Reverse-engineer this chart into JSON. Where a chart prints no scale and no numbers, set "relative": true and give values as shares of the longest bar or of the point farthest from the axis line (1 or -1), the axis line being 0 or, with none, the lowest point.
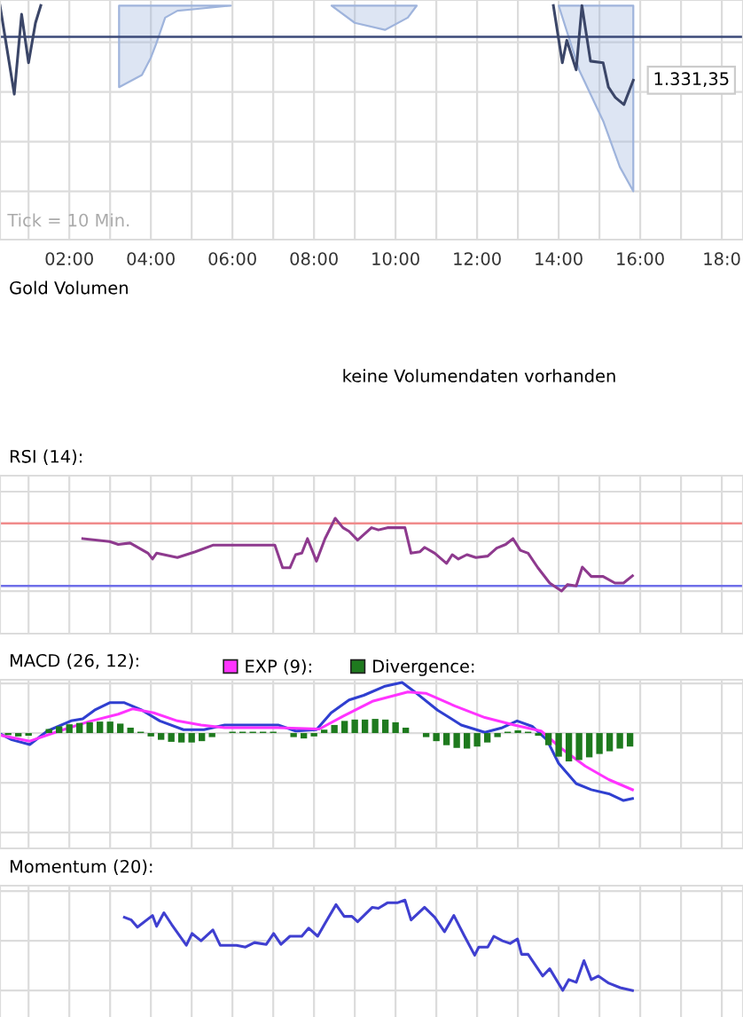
{
  "chart_data": [
    {
      "type": "line",
      "relative": true,
      "xlim": [
        0.3,
        18.52
      ],
      "grid": true,
      "xticks": [
        {
          "value": 1,
          "label": null
        },
        {
          "value": 2,
          "label": "02:00"
        },
        {
          "value": 3,
          "label": null
        },
        {
          "value": 4,
          "label": "04:00"
        },
        {
          "value": 5,
          "label": null
        },
        {
          "value": 6,
          "label": "06:00"
        },
        {
          "value": 7,
          "label": null
        },
        {
          "value": 8,
          "label": "08:00"
        },
        {
          "value": 9,
          "label": null
        },
        {
          "value": 10,
          "label": "10:00"
        },
        {
          "value": 11,
          "label": null
        },
        {
          "value": 12,
          "label": "12:00"
        },
        {
          "value": 13,
          "label": null
        },
        {
          "value": 14,
          "label": "14:00"
        },
        {
          "value": 15,
          "label": null
        },
        {
          "value": 16,
          "label": "16:00"
        },
        {
          "value": 17,
          "label": null
        },
        {
          "value": 18,
          "label": "18:0"
        }
      ],
      "series": [
        {
          "color": "#3b4668",
          "x": [
            0.3,
            0.65,
            0.83,
            1.0,
            1.17,
            1.3,
            7.0,
            13.87,
            14.09,
            14.2,
            14.43,
            14.57,
            14.78,
            15.09,
            15.22,
            15.39,
            15.6,
            15.83
          ],
          "values": [
            1.0,
            0.523,
            0.953,
            0.692,
            0.907,
            1.0,
            null,
            1.0,
            0.692,
            0.813,
            0.654,
            1.0,
            0.701,
            0.692,
            0.561,
            0.505,
            0.467,
            0.598
          ]
        },
        {
          "color": "#9fb4dc",
          "x": [
            3.22,
            3.78,
            4.0,
            4.13,
            4.35,
            4.65,
            5.09,
            5.96,
            7.0,
            8.43,
            9.0,
            9.74,
            10.3,
            10.52,
            12.0,
            14.0,
            14.5,
            15.1,
            15.5,
            15.83
          ],
          "values": [
            null,
            null,
            null,
            null,
            null,
            null,
            null,
            null,
            null,
            null,
            null,
            null,
            null,
            null,
            null,
            null,
            null,
            null,
            null,
            null
          ],
          "lower": [
            0.561,
            0.626,
            0.72,
            0.794,
            0.935,
            0.972,
            0.981,
            1.0,
            null,
            1.0,
            0.907,
            0.869,
            0.935,
            1.0,
            null,
            1.0,
            0.654,
            0.374,
            0.131,
            0.0
          ],
          "upper": [
            1.0,
            1.0,
            1.0,
            1.0,
            1.0,
            1.0,
            1.0,
            1.0,
            null,
            1.0,
            1.0,
            1.0,
            1.0,
            1.0,
            null,
            1.0,
            1.0,
            1.0,
            1.0,
            1.0
          ]
        }
      ],
      "ref_lines": [
        {
          "axis": "y",
          "value": 0.832,
          "color": "#3b4a78"
        }
      ],
      "annotations": [
        "Tick = 10 Min.",
        {
          "text": "1.331,35",
          "x": 15.83,
          "y": 0.598
        }
      ]
    },
    {
      "type": "other",
      "title": "Gold Volumen",
      "annotations": [
        "keine Volumendaten vorhanden"
      ]
    },
    {
      "type": "line",
      "relative": true,
      "title": "RSI (14):",
      "xlim": [
        0.3,
        18.52
      ],
      "xticks": [
        1,
        2,
        3,
        4,
        5,
        6,
        7,
        8,
        9,
        10,
        11,
        12,
        13,
        14,
        15,
        16,
        17,
        18
      ],
      "tick_labels": false,
      "grid": true,
      "series": [
        {
          "color": "#8e3a8e",
          "x": [
            2.33,
            2.99,
            3.2,
            3.49,
            3.93,
            4.04,
            4.14,
            4.65,
            5.09,
            5.52,
            7.04,
            7.23,
            7.41,
            7.55,
            7.7,
            7.84,
            8.06,
            8.27,
            8.52,
            8.71,
            8.86,
            9.07,
            9.41,
            9.58,
            9.8,
            10.23,
            10.38,
            10.6,
            10.71,
            10.96,
            11.25,
            11.39,
            11.54,
            11.75,
            11.97,
            12.26,
            12.48,
            12.7,
            12.88,
            13.06,
            13.25,
            13.49,
            13.78,
            14.07,
            14.22,
            14.43,
            14.58,
            14.8,
            15.09,
            15.38,
            15.59,
            15.81
          ],
          "values": [
            0.72,
            0.68,
            0.64,
            0.66,
            0.52,
            0.44,
            0.52,
            0.46,
            0.54,
            0.63,
            0.63,
            0.32,
            0.32,
            0.5,
            0.52,
            0.72,
            0.41,
            0.72,
            1.0,
            0.87,
            0.82,
            0.7,
            0.87,
            0.84,
            0.87,
            0.87,
            0.52,
            0.54,
            0.6,
            0.52,
            0.38,
            0.5,
            0.44,
            0.5,
            0.46,
            0.48,
            0.59,
            0.64,
            0.72,
            0.56,
            0.52,
            0.32,
            0.11,
            0.0,
            0.09,
            0.07,
            0.33,
            0.2,
            0.2,
            0.11,
            0.11,
            0.21
          ]
        }
      ],
      "ref_lines": [
        {
          "axis": "y",
          "value": 0.93,
          "color": "#f08a8a"
        },
        {
          "axis": "y",
          "value": 0.07,
          "color": "#6f6fe8"
        }
      ]
    },
    {
      "type": "line",
      "relative": true,
      "title": "MACD (26, 12):",
      "xlim": [
        0.3,
        18.52
      ],
      "xticks": [
        1,
        2,
        3,
        4,
        5,
        6,
        7,
        8,
        9,
        10,
        11,
        12,
        13,
        14,
        15,
        16,
        17,
        18
      ],
      "tick_labels": false,
      "grid": true,
      "legend": "top left",
      "series": [
        {
          "color": "#2f3fd0",
          "x": [
            0.3,
            0.59,
            1.03,
            1.46,
            2.04,
            2.33,
            2.62,
            2.99,
            3.35,
            3.78,
            4.22,
            4.8,
            5.3,
            5.81,
            7.12,
            7.55,
            8.06,
            8.42,
            8.86,
            9.22,
            9.72,
            10.16,
            10.45,
            11.03,
            11.61,
            12.19,
            12.62,
            12.98,
            13.35,
            13.71,
            14.0,
            14.43,
            14.8,
            15.23,
            15.59,
            15.81
          ],
          "values": [
            -0.01,
            -0.1,
            -0.17,
            0.03,
            0.18,
            0.21,
            0.34,
            0.45,
            0.45,
            0.34,
            0.18,
            0.05,
            0.05,
            0.12,
            0.12,
            0.03,
            0.05,
            0.3,
            0.49,
            0.56,
            0.69,
            0.75,
            0.62,
            0.34,
            0.12,
            0.01,
            0.08,
            0.18,
            0.1,
            -0.1,
            -0.45,
            -0.75,
            -0.84,
            -0.9,
            -1.0,
            -0.97
          ]
        },
        {
          "name": "EXP (9):",
          "color": "#ff33ff",
          "x": [
            0.3,
            1.03,
            1.75,
            2.48,
            3.2,
            3.56,
            4.07,
            4.65,
            5.23,
            5.81,
            7.12,
            8.13,
            8.71,
            9.43,
            10.3,
            10.74,
            11.46,
            12.19,
            12.91,
            13.57,
            14.07,
            14.65,
            15.23,
            15.81
          ],
          "values": [
            -0.03,
            -0.12,
            0.03,
            0.17,
            0.28,
            0.36,
            0.3,
            0.18,
            0.12,
            0.08,
            0.08,
            0.06,
            0.25,
            0.47,
            0.61,
            0.59,
            0.4,
            0.23,
            0.12,
            0.03,
            -0.23,
            -0.49,
            -0.69,
            -0.84
          ]
        },
        {
          "name": "Divergence:",
          "type": "bar",
          "color": "#1e7a1e",
          "x": [
            0.5,
            0.75,
            1.0,
            1.25,
            1.5,
            1.75,
            2.0,
            2.25,
            2.5,
            2.75,
            3.0,
            3.25,
            3.5,
            3.75,
            4.0,
            4.25,
            4.5,
            4.75,
            5.0,
            5.25,
            5.5,
            5.75,
            6.0,
            6.25,
            6.5,
            6.75,
            7.0,
            7.25,
            7.5,
            7.75,
            8.0,
            8.25,
            8.5,
            8.75,
            9.0,
            9.25,
            9.5,
            9.75,
            10.0,
            10.25,
            10.5,
            10.75,
            11.0,
            11.25,
            11.5,
            11.75,
            12.0,
            12.25,
            12.5,
            12.75,
            13.0,
            13.25,
            13.5,
            13.75,
            14.0,
            14.25,
            14.5,
            14.75,
            15.0,
            15.25,
            15.5,
            15.75
          ],
          "values": [
            -0.03,
            -0.05,
            -0.04,
            0.0,
            0.06,
            0.1,
            0.13,
            0.15,
            0.16,
            0.17,
            0.17,
            0.14,
            0.08,
            0.02,
            -0.05,
            -0.1,
            -0.13,
            -0.14,
            -0.14,
            -0.12,
            -0.06,
            0.0,
            0.02,
            0.02,
            0.02,
            0.02,
            0.02,
            0.0,
            -0.06,
            -0.08,
            -0.05,
            0.05,
            0.12,
            0.18,
            0.2,
            0.2,
            0.21,
            0.2,
            0.16,
            0.08,
            0.0,
            -0.06,
            -0.12,
            -0.18,
            -0.22,
            -0.23,
            -0.2,
            -0.14,
            -0.06,
            0.02,
            0.04,
            0.02,
            -0.04,
            -0.18,
            -0.35,
            -0.42,
            -0.4,
            -0.36,
            -0.31,
            -0.27,
            -0.23,
            -0.2
          ]
        }
      ]
    },
    {
      "type": "line",
      "relative": true,
      "title": "Momentum (20):",
      "xlim": [
        0.3,
        18.52
      ],
      "xticks": [
        1,
        2,
        3,
        4,
        5,
        6,
        7,
        8,
        9,
        10,
        11,
        12,
        13,
        14,
        15,
        16,
        17,
        18
      ],
      "tick_labels": false,
      "grid": true,
      "series": [
        {
          "color": "#3f3fd0",
          "x": [
            3.35,
            3.52,
            3.67,
            4.04,
            4.14,
            4.32,
            4.51,
            4.87,
            5.01,
            5.23,
            5.52,
            5.7,
            6.1,
            6.32,
            6.54,
            6.83,
            7.01,
            7.19,
            7.41,
            7.7,
            7.87,
            8.09,
            8.28,
            8.54,
            8.74,
            8.93,
            9.07,
            9.43,
            9.58,
            9.8,
            10.04,
            10.23,
            10.38,
            10.71,
            10.96,
            11.2,
            11.43,
            11.68,
            11.94,
            12.04,
            12.26,
            12.41,
            12.62,
            12.81,
            12.99,
            13.09,
            13.25,
            13.61,
            13.78,
            14.1,
            14.25,
            14.43,
            14.62,
            14.8,
            14.97,
            15.23,
            15.51,
            15.81
          ],
          "values": [
            0.81,
            0.78,
            0.7,
            0.83,
            0.71,
            0.86,
            0.73,
            0.5,
            0.63,
            0.55,
            0.67,
            0.5,
            0.5,
            0.48,
            0.53,
            0.51,
            0.63,
            0.51,
            0.6,
            0.6,
            0.69,
            0.6,
            0.75,
            0.95,
            0.82,
            0.82,
            0.76,
            0.92,
            0.91,
            0.97,
            0.97,
            1.0,
            0.78,
            0.92,
            0.81,
            0.65,
            0.83,
            0.61,
            0.39,
            0.48,
            0.48,
            0.6,
            0.55,
            0.52,
            0.57,
            0.4,
            0.4,
            0.16,
            0.24,
            0.0,
            0.12,
            0.09,
            0.33,
            0.12,
            0.16,
            0.08,
            0.03,
            0.0
          ]
        }
      ]
    }
  ]
}
